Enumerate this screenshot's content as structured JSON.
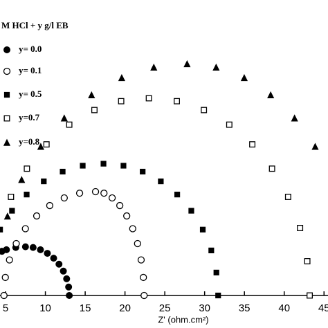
{
  "chart_data": {
    "type": "scatter",
    "xlabel": "Z' (ohm.cm²)",
    "legend_title": "M HCl + y g/l EB",
    "legend": "upper left",
    "xlim": [
      4.3,
      45.5
    ],
    "ylim": [
      0,
      37
    ],
    "xticks": [
      5,
      10,
      15,
      20,
      25,
      30,
      35,
      40,
      45
    ],
    "series": [
      {
        "name": "y= 0.0",
        "marker": "circle-filled",
        "color": "#000000",
        "x": [
          4.54,
          5.11,
          6.28,
          7.5,
          8.46,
          9.38,
          10.25,
          11.04,
          11.71,
          12.26,
          12.67,
          12.92,
          13.0
        ],
        "values": [
          5.53,
          5.73,
          6.01,
          6.1,
          6.01,
          5.73,
          5.28,
          4.67,
          3.92,
          3.05,
          2.09,
          1.06,
          0
        ]
      },
      {
        "name": "y= 0.1",
        "marker": "circle-open",
        "color": "#000000",
        "x": [
          4.8,
          4.97,
          5.49,
          6.34,
          7.49,
          8.91,
          10.55,
          12.37,
          14.3,
          16.3,
          17.36,
          18.39,
          19.35,
          20.22,
          20.97,
          21.58,
          22.03,
          22.31,
          22.4
        ],
        "values": [
          0,
          2.26,
          4.45,
          6.5,
          8.36,
          9.96,
          11.26,
          12.22,
          12.81,
          13,
          12.81,
          12.22,
          11.26,
          9.96,
          8.36,
          6.5,
          4.45,
          2.26,
          0
        ]
      },
      {
        "name": "y= 0.5",
        "marker": "square-filled",
        "color": "#000000",
        "x": [
          4.31,
          5.81,
          7.65,
          9.8,
          12.17,
          14.69,
          17.3,
          19.81,
          22.22,
          24.5,
          26.56,
          28.33,
          29.77,
          30.84,
          31.48,
          31.7
        ],
        "values": [
          8.25,
          10.61,
          12.64,
          14.29,
          15.51,
          16.25,
          16.5,
          16.25,
          15.51,
          14.29,
          12.64,
          10.61,
          8.25,
          5.64,
          2.87,
          0
        ]
      },
      {
        "name": "y=0.7",
        "marker": "square-open",
        "color": "#000000",
        "x": [
          5.68,
          7.68,
          10.14,
          13.0,
          16.16,
          19.52,
          23.0,
          26.51,
          29.91,
          33.1,
          35.99,
          38.47,
          40.49,
          41.99,
          42.9,
          43.2
        ],
        "values": [
          12.35,
          15.88,
          18.92,
          21.39,
          23.22,
          24.33,
          24.7,
          24.33,
          23.22,
          21.39,
          18.92,
          15.88,
          12.35,
          8.45,
          4.29,
          0
        ]
      },
      {
        "name": "y=0.8",
        "marker": "triangle-filled",
        "color": "#000000",
        "x": [
          5.24,
          7.02,
          9.42,
          12.37,
          15.8,
          19.59,
          23.62,
          27.8,
          31.45,
          34.98,
          38.3,
          41.3,
          43.89
        ],
        "values": [
          9.92,
          14.5,
          18.65,
          22.21,
          25.11,
          27.26,
          28.57,
          29,
          28.57,
          27.26,
          25.11,
          22.21,
          18.65
        ]
      }
    ]
  }
}
